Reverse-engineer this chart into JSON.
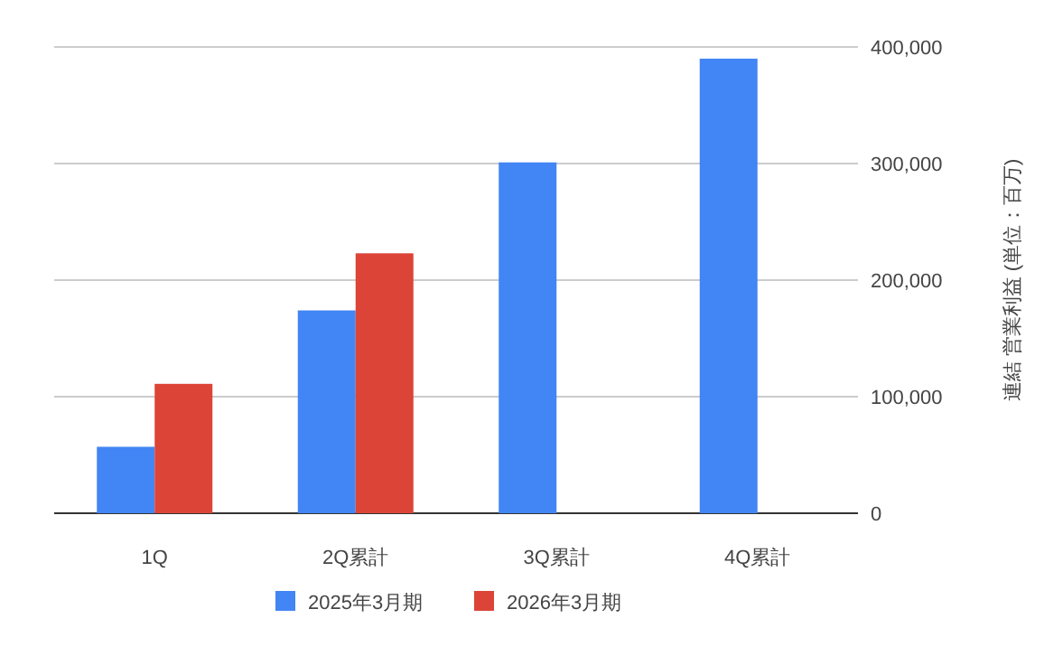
{
  "chart_data": {
    "type": "bar",
    "categories": [
      "1Q",
      "2Q累計",
      "3Q累計",
      "4Q累計"
    ],
    "series": [
      {
        "name": "2025年3月期",
        "color": "#4285f4",
        "values": [
          57000,
          174000,
          301000,
          390000
        ]
      },
      {
        "name": "2026年3月期",
        "color": "#db4437",
        "values": [
          111000,
          223000,
          null,
          null
        ]
      }
    ],
    "ylabel": "連結 営業利益 (単位：百万)",
    "ylim": [
      0,
      400000
    ],
    "yticks": [
      {
        "value": 0,
        "label": "0"
      },
      {
        "value": 100000,
        "label": "100,000"
      },
      {
        "value": 200000,
        "label": "200,000"
      },
      {
        "value": 300000,
        "label": "300,000"
      },
      {
        "value": 400000,
        "label": "400,000"
      }
    ],
    "grid": "y",
    "legend": "bottom"
  }
}
